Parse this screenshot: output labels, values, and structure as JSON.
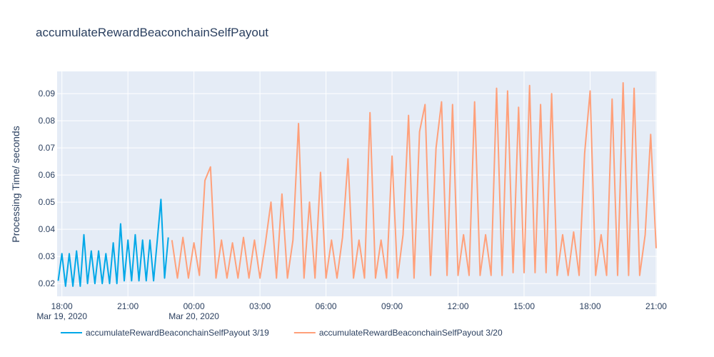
{
  "chart_data": {
    "type": "line",
    "title": "accumulateRewardBeaconchainSelfPayout",
    "y_label": "Processing Time/ seconds",
    "grid": true,
    "legend": "bottom-left",
    "xlim": [
      "2020-03-19 17:47",
      "2020-03-20 21:02"
    ],
    "ylim": [
      0.0153,
      0.0982
    ],
    "yticks": [
      0.02,
      0.03,
      0.04,
      0.05,
      0.06,
      0.07,
      0.08,
      0.09
    ],
    "xticks": [
      {
        "value": "2020-03-19 18:00",
        "label": "18:00"
      },
      {
        "value": "2020-03-19 21:00",
        "label": "21:00"
      },
      {
        "value": "2020-03-20 00:00",
        "label": "00:00"
      },
      {
        "value": "2020-03-20 03:00",
        "label": "03:00"
      },
      {
        "value": "2020-03-20 06:00",
        "label": "06:00"
      },
      {
        "value": "2020-03-20 09:00",
        "label": "09:00"
      },
      {
        "value": "2020-03-20 12:00",
        "label": "12:00"
      },
      {
        "value": "2020-03-20 15:00",
        "label": "15:00"
      },
      {
        "value": "2020-03-20 18:00",
        "label": "18:00"
      },
      {
        "value": "2020-03-20 21:00",
        "label": "21:00"
      }
    ],
    "xtick_dates": [
      {
        "value": "2020-03-19 18:00",
        "label": "Mar 19, 2020"
      },
      {
        "value": "2020-03-20 00:00",
        "label": "Mar 20, 2020"
      }
    ],
    "series": [
      {
        "name": "accumulateRewardBeaconchainSelfPayout 3/19",
        "color": "#00a8e8",
        "x": [
          "2020-03-19 17:50",
          "2020-03-19 18:00",
          "2020-03-19 18:10",
          "2020-03-19 18:20",
          "2020-03-19 18:30",
          "2020-03-19 18:40",
          "2020-03-19 18:50",
          "2020-03-19 19:00",
          "2020-03-19 19:10",
          "2020-03-19 19:20",
          "2020-03-19 19:30",
          "2020-03-19 19:40",
          "2020-03-19 19:50",
          "2020-03-19 20:00",
          "2020-03-19 20:10",
          "2020-03-19 20:20",
          "2020-03-19 20:30",
          "2020-03-19 20:40",
          "2020-03-19 20:50",
          "2020-03-19 21:00",
          "2020-03-19 21:10",
          "2020-03-19 21:20",
          "2020-03-19 21:30",
          "2020-03-19 21:40",
          "2020-03-19 21:50",
          "2020-03-19 22:00",
          "2020-03-19 22:10",
          "2020-03-19 22:20",
          "2020-03-19 22:30",
          "2020-03-19 22:40",
          "2020-03-19 22:50"
        ],
        "values": [
          0.021,
          0.031,
          0.019,
          0.031,
          0.019,
          0.032,
          0.019,
          0.038,
          0.02,
          0.032,
          0.02,
          0.032,
          0.02,
          0.031,
          0.02,
          0.035,
          0.02,
          0.042,
          0.021,
          0.036,
          0.021,
          0.038,
          0.021,
          0.036,
          0.021,
          0.036,
          0.021,
          0.036,
          0.051,
          0.022,
          0.037
        ]
      },
      {
        "name": "accumulateRewardBeaconchainSelfPayout 3/20",
        "color": "#ffa07a",
        "x": [
          "2020-03-19 23:00",
          "2020-03-19 23:15",
          "2020-03-19 23:30",
          "2020-03-19 23:45",
          "2020-03-20 00:00",
          "2020-03-20 00:15",
          "2020-03-20 00:30",
          "2020-03-20 00:45",
          "2020-03-20 01:00",
          "2020-03-20 01:15",
          "2020-03-20 01:30",
          "2020-03-20 01:45",
          "2020-03-20 02:00",
          "2020-03-20 02:15",
          "2020-03-20 02:30",
          "2020-03-20 02:45",
          "2020-03-20 03:00",
          "2020-03-20 03:15",
          "2020-03-20 03:30",
          "2020-03-20 03:45",
          "2020-03-20 04:00",
          "2020-03-20 04:15",
          "2020-03-20 04:30",
          "2020-03-20 04:45",
          "2020-03-20 05:00",
          "2020-03-20 05:15",
          "2020-03-20 05:30",
          "2020-03-20 05:45",
          "2020-03-20 06:00",
          "2020-03-20 06:15",
          "2020-03-20 06:30",
          "2020-03-20 06:45",
          "2020-03-20 07:00",
          "2020-03-20 07:15",
          "2020-03-20 07:30",
          "2020-03-20 07:45",
          "2020-03-20 08:00",
          "2020-03-20 08:15",
          "2020-03-20 08:30",
          "2020-03-20 08:45",
          "2020-03-20 09:00",
          "2020-03-20 09:15",
          "2020-03-20 09:30",
          "2020-03-20 09:45",
          "2020-03-20 10:00",
          "2020-03-20 10:15",
          "2020-03-20 10:30",
          "2020-03-20 10:45",
          "2020-03-20 11:00",
          "2020-03-20 11:15",
          "2020-03-20 11:30",
          "2020-03-20 11:45",
          "2020-03-20 12:00",
          "2020-03-20 12:15",
          "2020-03-20 12:30",
          "2020-03-20 12:45",
          "2020-03-20 13:00",
          "2020-03-20 13:15",
          "2020-03-20 13:30",
          "2020-03-20 13:45",
          "2020-03-20 14:00",
          "2020-03-20 14:15",
          "2020-03-20 14:30",
          "2020-03-20 14:45",
          "2020-03-20 15:00",
          "2020-03-20 15:15",
          "2020-03-20 15:30",
          "2020-03-20 15:45",
          "2020-03-20 16:00",
          "2020-03-20 16:15",
          "2020-03-20 16:30",
          "2020-03-20 16:45",
          "2020-03-20 17:00",
          "2020-03-20 17:15",
          "2020-03-20 17:30",
          "2020-03-20 17:45",
          "2020-03-20 18:00",
          "2020-03-20 18:15",
          "2020-03-20 18:30",
          "2020-03-20 18:45",
          "2020-03-20 19:00",
          "2020-03-20 19:15",
          "2020-03-20 19:30",
          "2020-03-20 19:45",
          "2020-03-20 20:00",
          "2020-03-20 20:15",
          "2020-03-20 20:30",
          "2020-03-20 20:45",
          "2020-03-20 21:00"
        ],
        "values": [
          0.036,
          0.022,
          0.037,
          0.022,
          0.035,
          0.023,
          0.058,
          0.063,
          0.022,
          0.036,
          0.022,
          0.035,
          0.022,
          0.037,
          0.022,
          0.036,
          0.022,
          0.035,
          0.05,
          0.022,
          0.053,
          0.022,
          0.036,
          0.079,
          0.022,
          0.05,
          0.022,
          0.061,
          0.022,
          0.036,
          0.022,
          0.037,
          0.066,
          0.022,
          0.036,
          0.022,
          0.083,
          0.022,
          0.036,
          0.022,
          0.067,
          0.022,
          0.038,
          0.082,
          0.022,
          0.076,
          0.086,
          0.023,
          0.07,
          0.087,
          0.023,
          0.086,
          0.023,
          0.038,
          0.023,
          0.087,
          0.023,
          0.038,
          0.023,
          0.092,
          0.023,
          0.091,
          0.024,
          0.085,
          0.024,
          0.093,
          0.024,
          0.086,
          0.024,
          0.09,
          0.023,
          0.038,
          0.023,
          0.039,
          0.023,
          0.068,
          0.091,
          0.023,
          0.038,
          0.023,
          0.088,
          0.023,
          0.094,
          0.023,
          0.092,
          0.023,
          0.038,
          0.075,
          0.033
        ]
      }
    ]
  }
}
